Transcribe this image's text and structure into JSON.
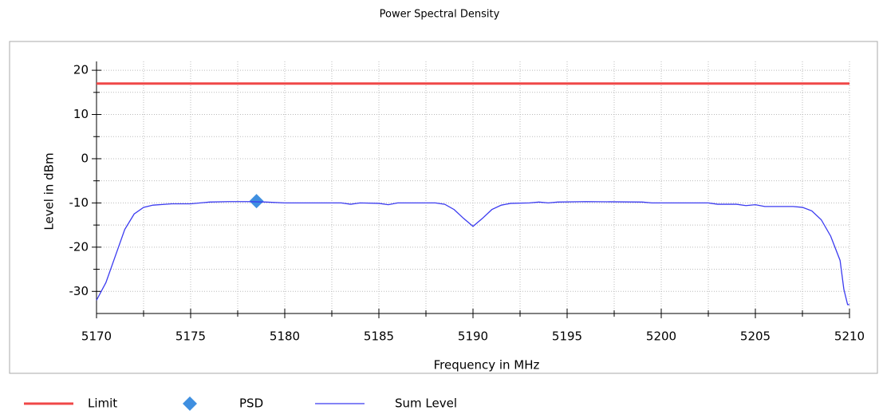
{
  "chart_data": {
    "type": "line",
    "title": "Power Spectral Density",
    "x_label": "Frequency in MHz",
    "y_label": "Level in dBm",
    "xlim": [
      5170,
      5210
    ],
    "xticks": [
      5170,
      5175,
      5180,
      5185,
      5190,
      5195,
      5200,
      5205,
      5210
    ],
    "x_minor_ticks": [
      5172.5,
      5177.5,
      5182.5,
      5187.5,
      5192.5,
      5197.5,
      5202.5,
      5207.5
    ],
    "ylim": [
      -35,
      22
    ],
    "yticks": [
      -30,
      -20,
      -10,
      0,
      10,
      20
    ],
    "y_minor_ticks": [
      -25,
      -15,
      -5,
      5,
      15
    ],
    "grid": true,
    "legend": "bottom",
    "series": [
      {
        "name": "Limit",
        "style": "line",
        "color": "#f04848",
        "x": [
          5170,
          5210
        ],
        "values": [
          17,
          17
        ]
      },
      {
        "name": "PSD",
        "style": "marker",
        "color": "#3f8fe0",
        "x": [
          5178.5
        ],
        "values": [
          -9.6
        ]
      },
      {
        "name": "Sum Level",
        "style": "line",
        "color": "#3b3bf0",
        "x": [
          5170,
          5170.5,
          5171,
          5171.5,
          5172,
          5172.5,
          5173,
          5174,
          5175,
          5176,
          5177,
          5178,
          5179,
          5180,
          5183,
          5183.5,
          5184,
          5185,
          5185.5,
          5186,
          5188,
          5188.5,
          5189,
          5189.5,
          5190,
          5190.5,
          5191,
          5191.5,
          5192,
          5193,
          5193.5,
          5194,
          5194.5,
          5196,
          5199,
          5199.5,
          5202.5,
          5203,
          5204,
          5204.5,
          5205,
          5205.5,
          5207,
          5207.5,
          5208,
          5208.5,
          5209,
          5209.5,
          5209.7,
          5209.9,
          5210
        ],
        "values": [
          -32,
          -28,
          -22,
          -16,
          -12.5,
          -11,
          -10.5,
          -10.2,
          -10.2,
          -9.8,
          -9.7,
          -9.7,
          -9.8,
          -10,
          -10,
          -10.3,
          -10,
          -10.1,
          -10.4,
          -10,
          -10,
          -10.3,
          -11.5,
          -13.5,
          -15.3,
          -13.5,
          -11.5,
          -10.5,
          -10.1,
          -10,
          -9.8,
          -10,
          -9.8,
          -9.7,
          -9.8,
          -10,
          -10,
          -10.3,
          -10.3,
          -10.6,
          -10.4,
          -10.8,
          -10.8,
          -11,
          -11.8,
          -13.8,
          -17.5,
          -23,
          -29.5,
          -33,
          -33
        ]
      }
    ]
  }
}
